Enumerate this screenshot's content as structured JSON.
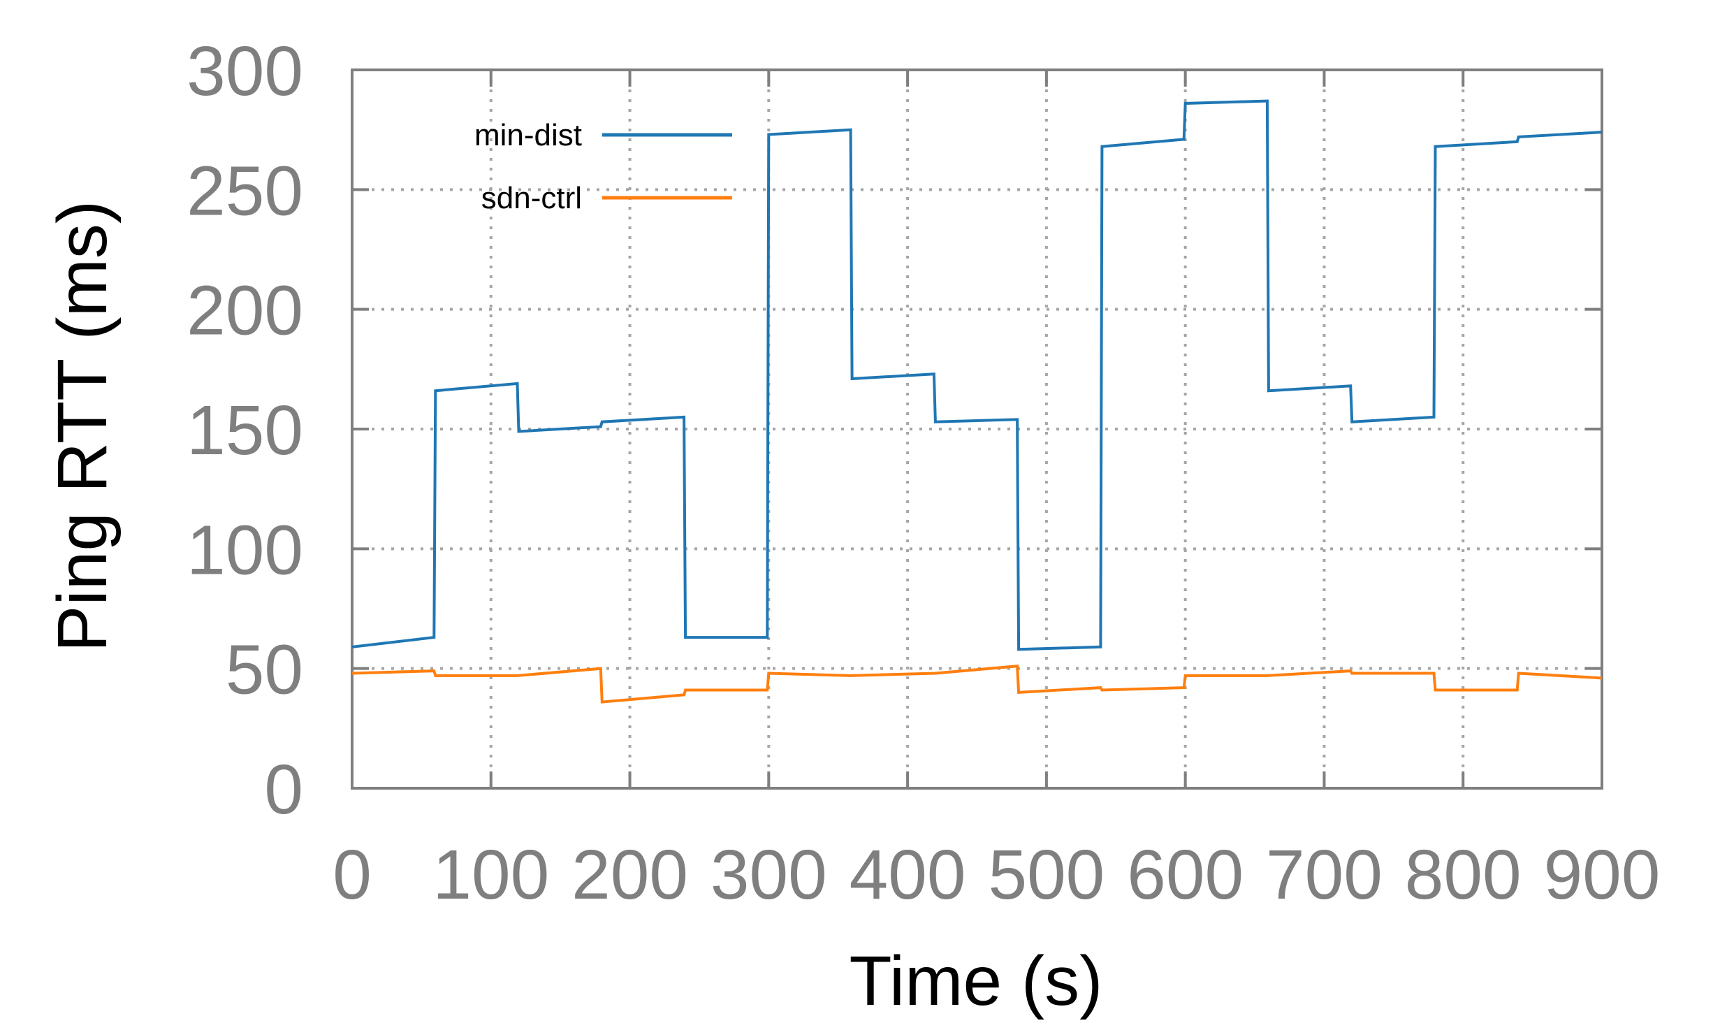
{
  "chart_data": {
    "type": "line",
    "title": "",
    "xlabel": "Time (s)",
    "ylabel": "Ping RTT (ms)",
    "xlim": [
      0,
      900
    ],
    "ylim": [
      0,
      300
    ],
    "xticks": [
      "0",
      "100",
      "200",
      "300",
      "400",
      "500",
      "600",
      "700",
      "800",
      "900"
    ],
    "yticks": [
      "0",
      "50",
      "100",
      "150",
      "200",
      "250",
      "300"
    ],
    "xtick_values": [
      0,
      100,
      200,
      300,
      400,
      500,
      600,
      700,
      800,
      900
    ],
    "ytick_values": [
      0,
      50,
      100,
      150,
      200,
      250,
      300
    ],
    "grid": true,
    "legend": "top-left",
    "series": [
      {
        "name": "min-dist",
        "color": "#1f77b4",
        "points": [
          [
            0,
            59
          ],
          [
            59,
            63
          ],
          [
            60,
            166
          ],
          [
            119,
            169
          ],
          [
            120,
            149
          ],
          [
            179,
            151
          ],
          [
            180,
            153
          ],
          [
            239,
            155
          ],
          [
            240,
            63
          ],
          [
            299,
            63
          ],
          [
            300,
            273
          ],
          [
            359,
            275
          ],
          [
            360,
            171
          ],
          [
            419,
            173
          ],
          [
            420,
            153
          ],
          [
            479,
            154
          ],
          [
            480,
            58
          ],
          [
            539,
            59
          ],
          [
            540,
            268
          ],
          [
            599,
            271
          ],
          [
            600,
            286
          ],
          [
            659,
            287
          ],
          [
            660,
            166
          ],
          [
            719,
            168
          ],
          [
            720,
            153
          ],
          [
            779,
            155
          ],
          [
            780,
            268
          ],
          [
            839,
            270
          ],
          [
            840,
            272
          ],
          [
            900,
            274
          ]
        ]
      },
      {
        "name": "sdn-ctrl",
        "color": "#ff7f0e",
        "points": [
          [
            0,
            48
          ],
          [
            59,
            49
          ],
          [
            60,
            47
          ],
          [
            119,
            47
          ],
          [
            179,
            50
          ],
          [
            180,
            36
          ],
          [
            239,
            39
          ],
          [
            240,
            41
          ],
          [
            299,
            41
          ],
          [
            300,
            48
          ],
          [
            359,
            47
          ],
          [
            420,
            48
          ],
          [
            479,
            51
          ],
          [
            480,
            40
          ],
          [
            539,
            42
          ],
          [
            540,
            41
          ],
          [
            599,
            42
          ],
          [
            600,
            47
          ],
          [
            659,
            47
          ],
          [
            719,
            49
          ],
          [
            720,
            48
          ],
          [
            779,
            48
          ],
          [
            780,
            41
          ],
          [
            839,
            41
          ],
          [
            840,
            48
          ],
          [
            900,
            46
          ]
        ]
      }
    ]
  }
}
